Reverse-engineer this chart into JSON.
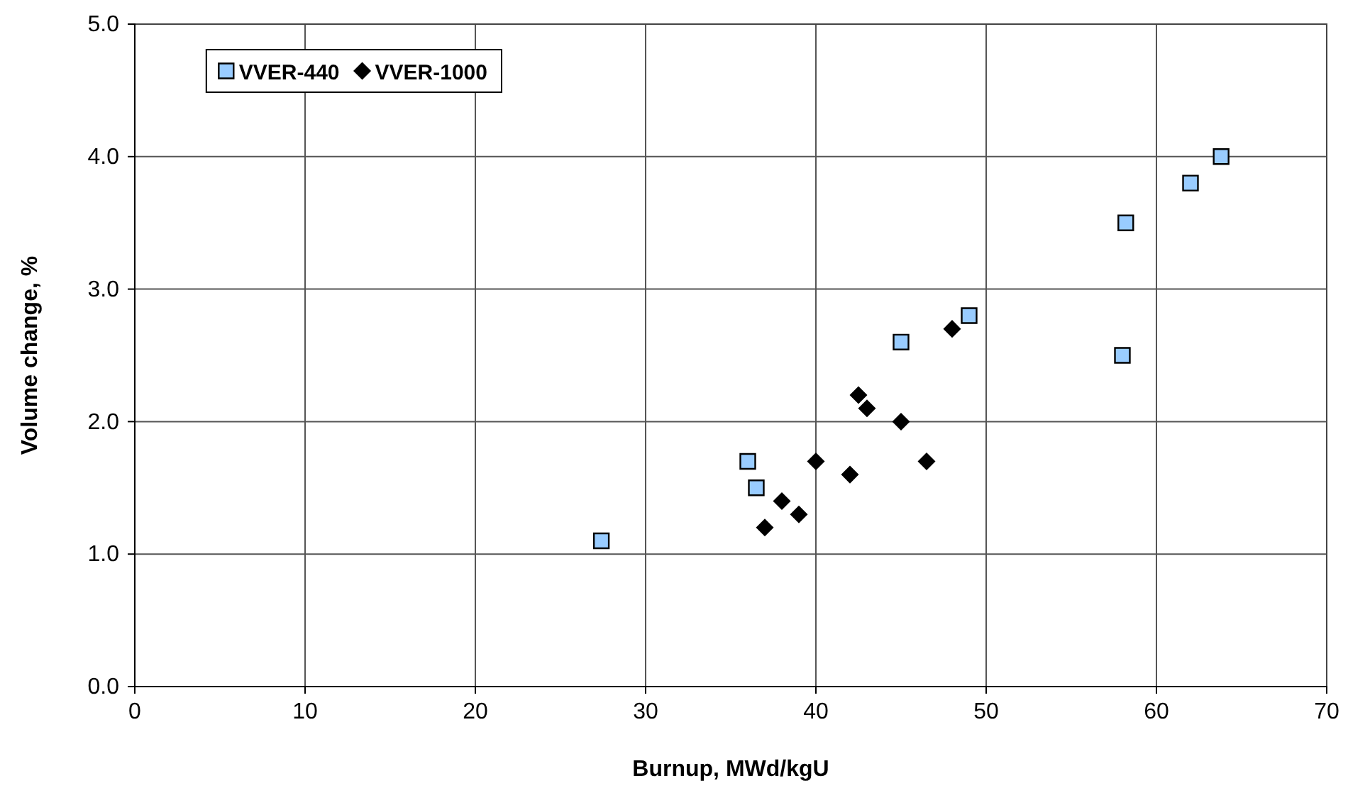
{
  "chart_data": {
    "type": "scatter",
    "xlabel": "Burnup, MWd/kgU",
    "ylabel": "Volume change, %",
    "xlim": [
      0,
      70
    ],
    "xticks": [
      0,
      10,
      20,
      30,
      40,
      50,
      60,
      70
    ],
    "ylim": [
      0,
      5
    ],
    "yticks": [
      {
        "value": 0,
        "label": "0.0"
      },
      {
        "value": 1,
        "label": "1.0"
      },
      {
        "value": 2,
        "label": "2.0"
      },
      {
        "value": 3,
        "label": "3.0"
      },
      {
        "value": 4,
        "label": "4.0"
      },
      {
        "value": 5,
        "label": "5.0"
      }
    ],
    "grid": true,
    "legend": "top left",
    "series": [
      {
        "name": "VVER-440",
        "color": "#99ccff",
        "marker": "square",
        "x": [
          27.4,
          36,
          36.5,
          45,
          49,
          58.2,
          58,
          62,
          63.8
        ],
        "values": [
          1.1,
          1.7,
          1.5,
          2.6,
          2.8,
          3.5,
          2.5,
          3.8,
          4.0
        ]
      },
      {
        "name": "VVER-1000",
        "color": "#000000",
        "marker": "diamond",
        "x": [
          37,
          38,
          39,
          40,
          42,
          42.5,
          43,
          45,
          46.5,
          48
        ],
        "values": [
          1.2,
          1.4,
          1.3,
          1.7,
          1.6,
          2.2,
          2.1,
          2.0,
          1.7,
          2.7
        ]
      }
    ]
  }
}
